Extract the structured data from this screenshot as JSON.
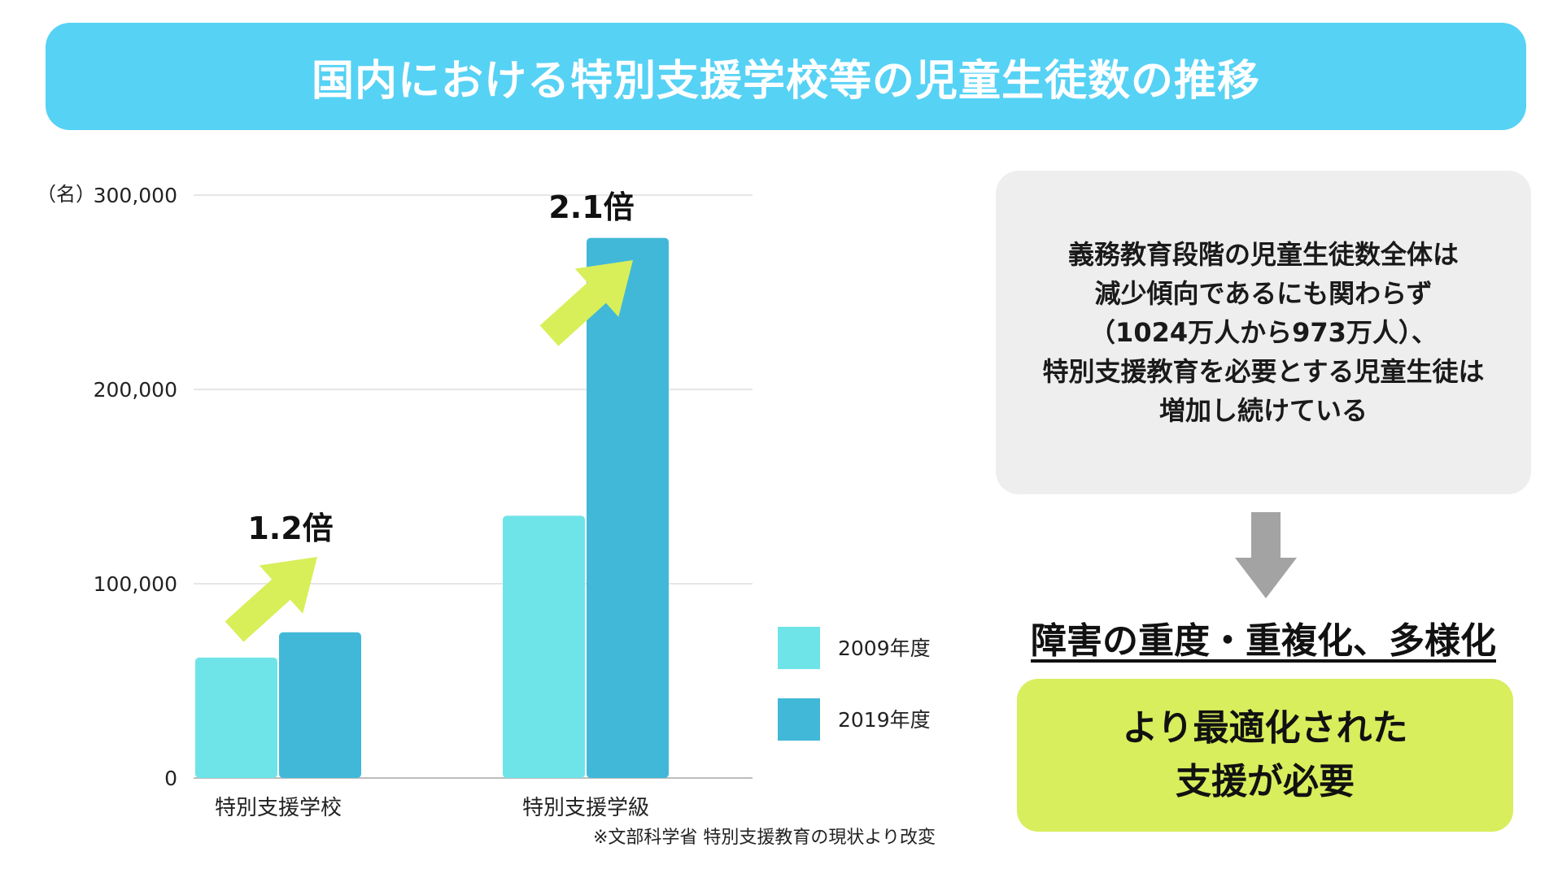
{
  "header": {
    "title": "国内における特別支援学校等の児童生徒数の推移"
  },
  "colors": {
    "header_bg": "#56d2f5",
    "series_2009": "#6ee4e8",
    "series_2019": "#41b8d8",
    "arrow_green": "#d8ef5a",
    "action_bg": "#d8ee5c",
    "down_arrow": "#a3a3a3"
  },
  "chart_data": {
    "type": "bar",
    "unit_label": "（名）",
    "categories": [
      "特別支援学校",
      "特別支援学級"
    ],
    "series": [
      {
        "name": "2009年度",
        "values": [
          62000,
          135000
        ]
      },
      {
        "name": "2019年度",
        "values": [
          75000,
          278000
        ]
      }
    ],
    "ylim": [
      0,
      300000
    ],
    "y_ticks": [
      0,
      100000,
      200000,
      300000
    ],
    "y_tick_labels": [
      "0",
      "100,000",
      "200,000",
      "300,000"
    ],
    "grid": true,
    "legend_position": "right",
    "annotations": [
      {
        "category": "特別支援学校",
        "text": "1.2倍"
      },
      {
        "category": "特別支援学級",
        "text": "2.1倍"
      }
    ],
    "source": "※文部科学省 特別支援教育の現状より改変"
  },
  "info": {
    "text": "義務教育段階の児童生徒数全体は\n減少傾向であるにも関わらず\n（1024万人から973万人）、\n特別支援教育を必要とする児童生徒は\n増加し続けている"
  },
  "conclusion": {
    "text": "障害の重度・重複化、多様化"
  },
  "action": {
    "text": "より最適化された\n支援が必要"
  },
  "icons": {
    "trend": "up-right-arrow-icon",
    "flow": "down-arrow-icon"
  }
}
